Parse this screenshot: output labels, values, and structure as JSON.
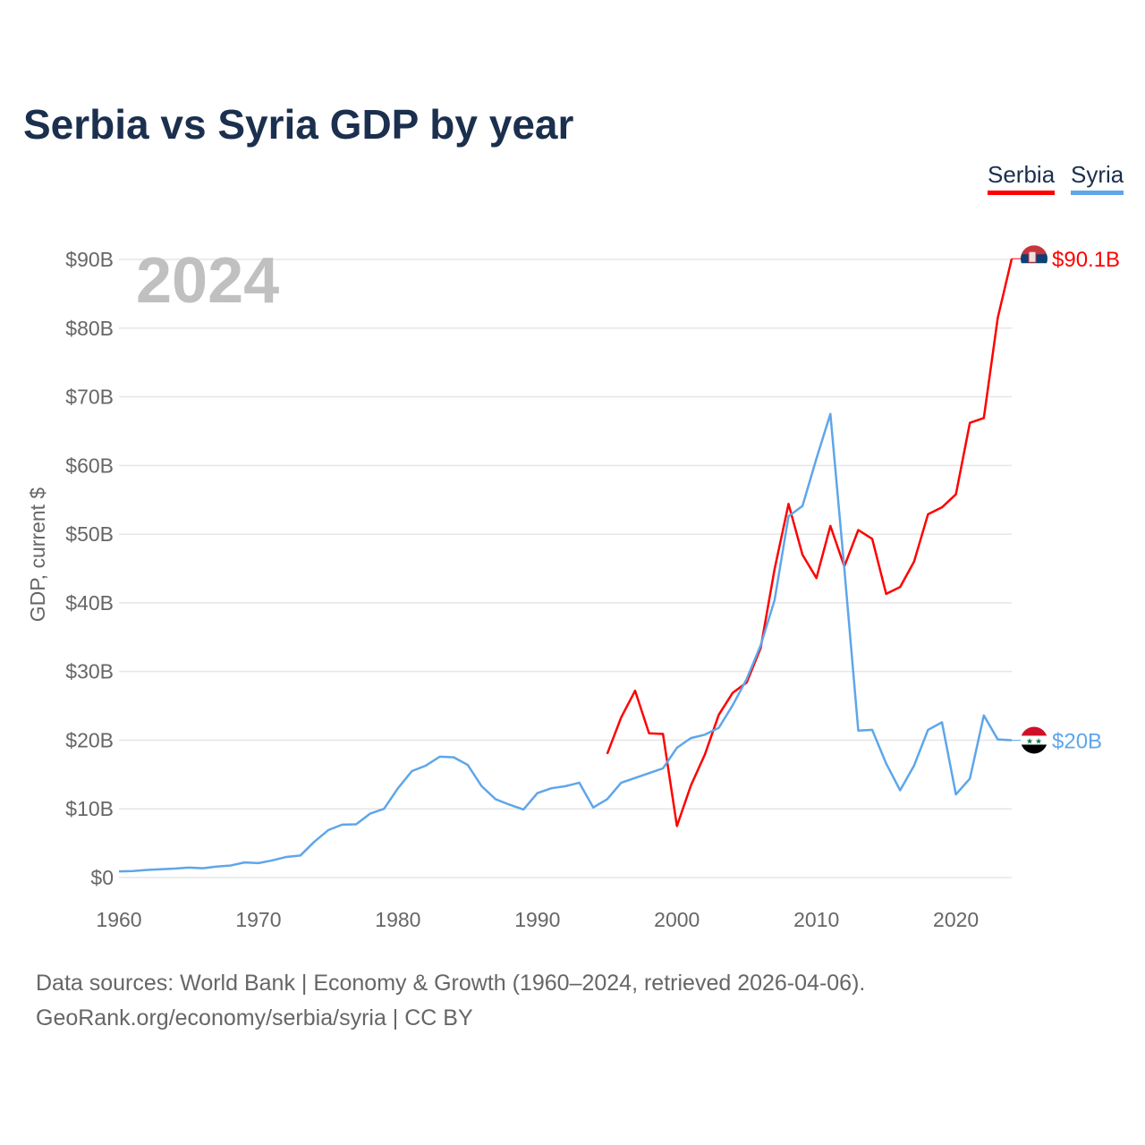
{
  "chart_data": {
    "type": "line",
    "title": "Serbia vs Syria GDP by year",
    "ylabel": "GDP, current $",
    "xlabel": "",
    "year_label": "2024",
    "xlim": [
      1960,
      2024
    ],
    "ylim": [
      0,
      90
    ],
    "x_ticks": [
      1960,
      1970,
      1980,
      1990,
      2000,
      2010,
      2020
    ],
    "y_ticks": [
      0,
      10,
      20,
      30,
      40,
      50,
      60,
      70,
      80,
      90
    ],
    "y_tick_labels": [
      "$0",
      "$10B",
      "$20B",
      "$30B",
      "$40B",
      "$50B",
      "$60B",
      "$70B",
      "$80B",
      "$90B"
    ],
    "grid": true,
    "legend_placement": "top-right",
    "series": [
      {
        "name": "Serbia",
        "color": "#ff0000",
        "end_label": "$90.1B",
        "start_year": 1995,
        "values": [
          18.0,
          23.3,
          27.2,
          21.0,
          20.9,
          7.5,
          13.4,
          17.9,
          23.7,
          26.9,
          28.4,
          33.4,
          44.9,
          54.4,
          47.0,
          43.6,
          51.2,
          45.3,
          50.6,
          49.3,
          41.3,
          42.3,
          46.0,
          52.9,
          53.9,
          55.8,
          66.2,
          66.9,
          81.5,
          90.1
        ]
      },
      {
        "name": "Syria",
        "color": "#5ea6ea",
        "end_label": "$20B",
        "start_year": 1960,
        "values": [
          0.9,
          0.95,
          1.1,
          1.2,
          1.3,
          1.45,
          1.35,
          1.6,
          1.75,
          2.2,
          2.1,
          2.5,
          3.0,
          3.2,
          5.2,
          6.9,
          7.7,
          7.75,
          9.3,
          10.0,
          13.0,
          15.5,
          16.3,
          17.6,
          17.5,
          16.4,
          13.3,
          11.4,
          10.6,
          9.9,
          12.3,
          13.0,
          13.3,
          13.8,
          10.2,
          11.4,
          13.8,
          14.5,
          15.2,
          15.9,
          18.9,
          20.3,
          20.8,
          21.8,
          25.1,
          28.9,
          33.8,
          40.4,
          52.6,
          54.1,
          61.0,
          67.5,
          45.0,
          21.4,
          21.5,
          16.6,
          12.7,
          16.3,
          21.5,
          22.6,
          12.1,
          14.4,
          23.6,
          20.1,
          20.0
        ]
      }
    ]
  },
  "source_line1": "Data sources: World Bank | Economy & Growth (1960–2024, retrieved 2026-04-06).",
  "source_line2": "GeoRank.org/economy/serbia/syria | CC BY"
}
